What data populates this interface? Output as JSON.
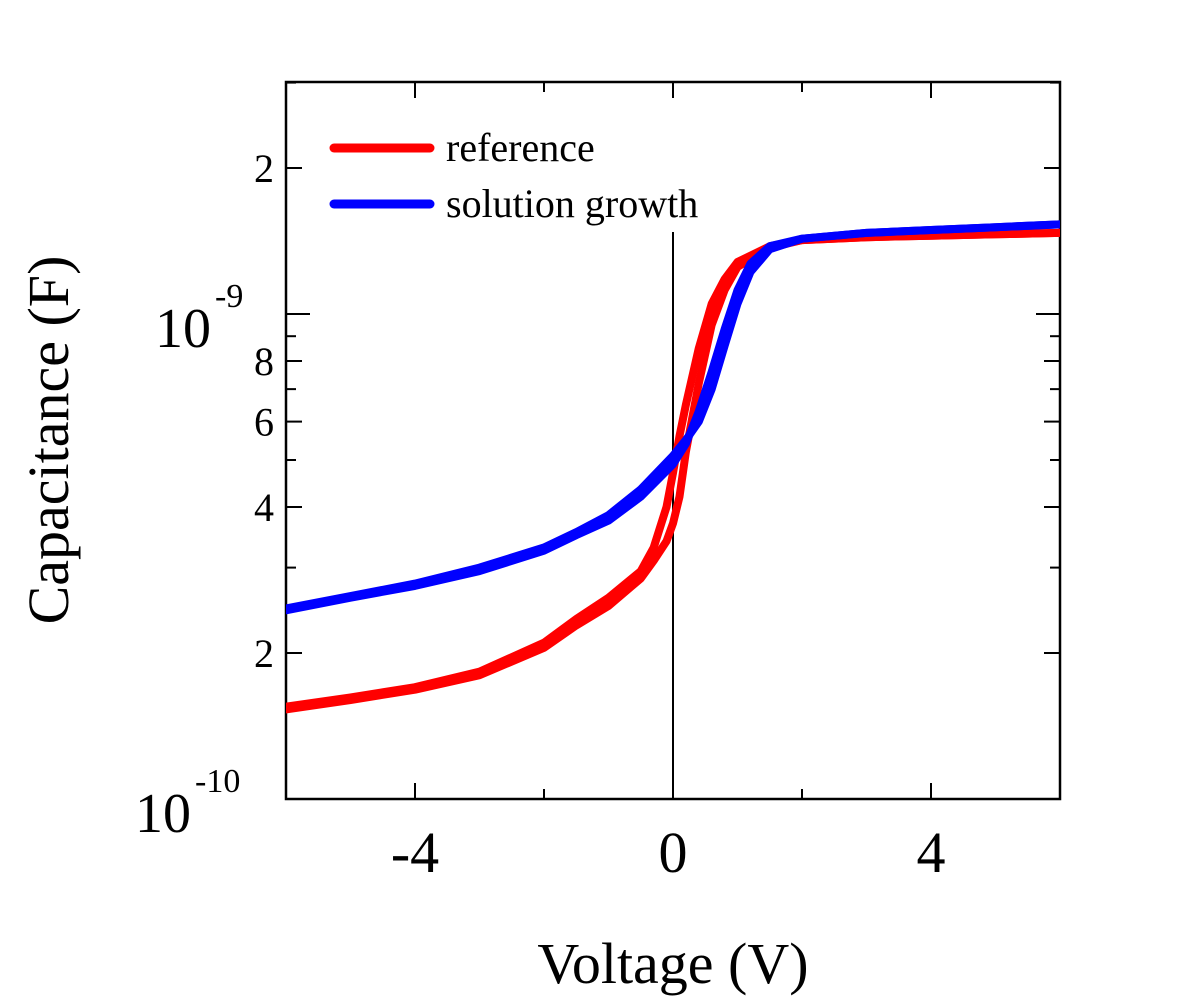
{
  "chart_data": {
    "type": "line",
    "xlabel": "Voltage (V)",
    "ylabel": "Capacitance (F)",
    "xlim": [
      -6,
      6
    ],
    "ylim": [
      1e-10,
      3e-09
    ],
    "y_scale": "log",
    "x_ticks": [
      {
        "value": -4,
        "label": "-4"
      },
      {
        "value": 0,
        "label": "0"
      },
      {
        "value": 4,
        "label": "4"
      }
    ],
    "y_tick_labels": {
      "major_low": {
        "base": "10",
        "exp": "-10"
      },
      "major_high": {
        "base": "10",
        "exp": "-9"
      },
      "minor": [
        {
          "value": 2e-10,
          "label": "2"
        },
        {
          "value": 4e-10,
          "label": "4"
        },
        {
          "value": 6e-10,
          "label": "6"
        },
        {
          "value": 8e-10,
          "label": "8"
        },
        {
          "value": 2e-09,
          "label": "2"
        }
      ]
    },
    "grid": false,
    "vertical_line_at_x": 0,
    "legend_position": "top-left",
    "series": [
      {
        "name": "reference",
        "color": "#ff0000",
        "forward": [
          [
            -6.0,
            1.55e-10
          ],
          [
            -5.0,
            1.62e-10
          ],
          [
            -4.0,
            1.7e-10
          ],
          [
            -3.0,
            1.83e-10
          ],
          [
            -2.0,
            2.1e-10
          ],
          [
            -1.5,
            2.35e-10
          ],
          [
            -1.0,
            2.6e-10
          ],
          [
            -0.5,
            2.95e-10
          ],
          [
            -0.3,
            3.3e-10
          ],
          [
            -0.1,
            4e-10
          ],
          [
            0.0,
            4.7e-10
          ],
          [
            0.1,
            5.6e-10
          ],
          [
            0.2,
            6.5e-10
          ],
          [
            0.4,
            8.5e-10
          ],
          [
            0.6,
            1.05e-09
          ],
          [
            0.8,
            1.18e-09
          ],
          [
            1.0,
            1.28e-09
          ],
          [
            1.5,
            1.38e-09
          ],
          [
            2.0,
            1.42e-09
          ],
          [
            3.0,
            1.44e-09
          ],
          [
            4.0,
            1.45e-09
          ],
          [
            5.0,
            1.46e-09
          ],
          [
            6.0,
            1.47e-09
          ]
        ],
        "reverse": [
          [
            6.0,
            1.47e-09
          ],
          [
            5.0,
            1.46e-09
          ],
          [
            4.0,
            1.45e-09
          ],
          [
            3.0,
            1.44e-09
          ],
          [
            2.0,
            1.42e-09
          ],
          [
            1.5,
            1.37e-09
          ],
          [
            1.0,
            1.25e-09
          ],
          [
            0.8,
            1.12e-09
          ],
          [
            0.6,
            9.5e-10
          ],
          [
            0.4,
            7.2e-10
          ],
          [
            0.2,
            5.2e-10
          ],
          [
            0.1,
            4.2e-10
          ],
          [
            0.0,
            3.7e-10
          ],
          [
            -0.1,
            3.4e-10
          ],
          [
            -0.3,
            3.1e-10
          ],
          [
            -0.5,
            2.85e-10
          ],
          [
            -1.0,
            2.5e-10
          ],
          [
            -1.5,
            2.28e-10
          ],
          [
            -2.0,
            2.05e-10
          ],
          [
            -3.0,
            1.8e-10
          ],
          [
            -4.0,
            1.68e-10
          ],
          [
            -5.0,
            1.6e-10
          ],
          [
            -6.0,
            1.53e-10
          ]
        ]
      },
      {
        "name": "solution growth",
        "color": "#0000ff",
        "forward": [
          [
            -6.0,
            2.45e-10
          ],
          [
            -5.0,
            2.6e-10
          ],
          [
            -4.0,
            2.75e-10
          ],
          [
            -3.0,
            2.95e-10
          ],
          [
            -2.0,
            3.25e-10
          ],
          [
            -1.5,
            3.5e-10
          ],
          [
            -1.0,
            3.75e-10
          ],
          [
            -0.5,
            4.2e-10
          ],
          [
            0.0,
            4.9e-10
          ],
          [
            0.2,
            5.4e-10
          ],
          [
            0.4,
            6.3e-10
          ],
          [
            0.6,
            7.6e-10
          ],
          [
            0.8,
            9.3e-10
          ],
          [
            1.0,
            1.12e-09
          ],
          [
            1.2,
            1.27e-09
          ],
          [
            1.5,
            1.38e-09
          ],
          [
            2.0,
            1.43e-09
          ],
          [
            3.0,
            1.47e-09
          ],
          [
            4.0,
            1.49e-09
          ],
          [
            5.0,
            1.51e-09
          ],
          [
            6.0,
            1.53e-09
          ]
        ],
        "reverse": [
          [
            6.0,
            1.53e-09
          ],
          [
            5.0,
            1.51e-09
          ],
          [
            4.0,
            1.49e-09
          ],
          [
            3.0,
            1.47e-09
          ],
          [
            2.0,
            1.43e-09
          ],
          [
            1.5,
            1.36e-09
          ],
          [
            1.2,
            1.22e-09
          ],
          [
            1.0,
            1.05e-09
          ],
          [
            0.8,
            8.6e-10
          ],
          [
            0.6,
            7e-10
          ],
          [
            0.4,
            6e-10
          ],
          [
            0.2,
            5.5e-10
          ],
          [
            0.0,
            5.1e-10
          ],
          [
            -0.5,
            4.35e-10
          ],
          [
            -1.0,
            3.85e-10
          ],
          [
            -1.5,
            3.55e-10
          ],
          [
            -2.0,
            3.3e-10
          ],
          [
            -3.0,
            3e-10
          ],
          [
            -4.0,
            2.78e-10
          ],
          [
            -5.0,
            2.62e-10
          ],
          [
            -6.0,
            2.47e-10
          ]
        ]
      }
    ]
  }
}
